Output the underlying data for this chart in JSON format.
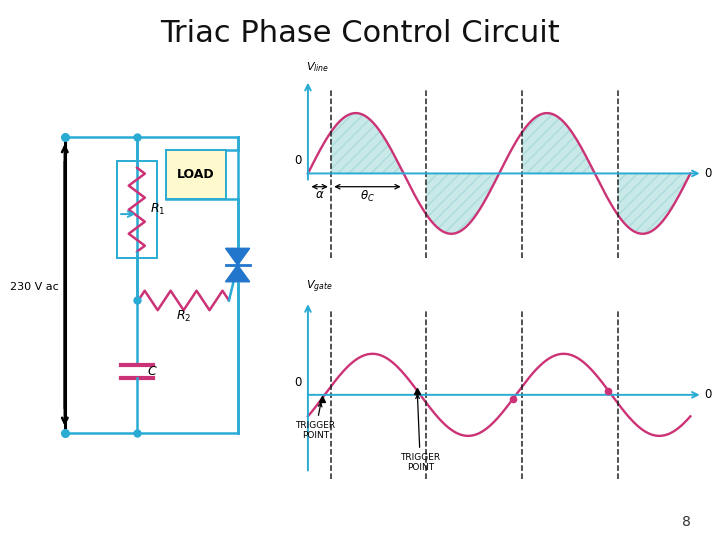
{
  "title": "Triac Phase Control Circuit",
  "title_fontsize": 22,
  "page_number": "8",
  "bg_color": "#ffffff",
  "circuit": {
    "line_color": "#29ABD4",
    "resistor_color": "#CC3377",
    "triac_color": "#2277CC",
    "text_color": "#000000",
    "load_bg": "#FFFACD",
    "label_230": "230 V ac",
    "label_R1": "$R_1$",
    "label_R2": "$R_2$",
    "label_C": "$C$",
    "label_LOAD": "LOAD"
  },
  "waveform": {
    "sine_color": "#CC3377",
    "axis_color": "#29ABD4",
    "fill_color": "#88CCCC",
    "fill_alpha": 0.45,
    "fill_hatch_color": "#66AAAA",
    "dashed_color": "#222222",
    "alpha_phase": 0.75,
    "period": 6.283185307
  }
}
